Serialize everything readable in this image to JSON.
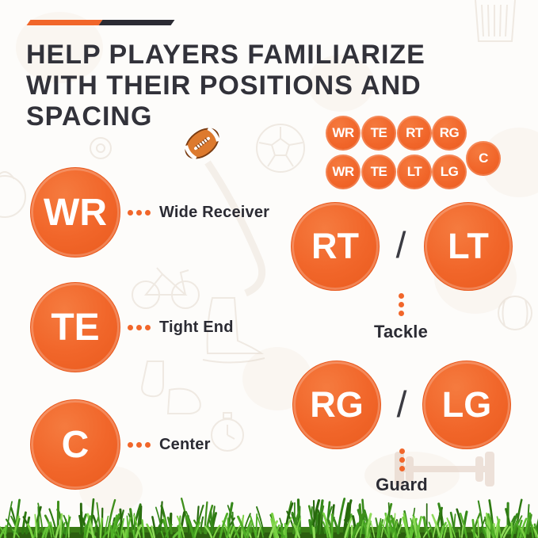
{
  "header": {
    "title_lines": [
      "HELP PLAYERS FAMILIARIZE",
      "WITH THEIR POSITIONS AND",
      "SPACING"
    ]
  },
  "mini_formation": {
    "row1": [
      "WR",
      "TE",
      "RT",
      "RG"
    ],
    "row2": [
      "WR",
      "TE",
      "LT",
      "LG"
    ],
    "side": "C"
  },
  "positions_left": [
    {
      "abbr": "WR",
      "label": "Wide Receiver"
    },
    {
      "abbr": "TE",
      "label": "Tight End"
    },
    {
      "abbr": "C",
      "label": "Center"
    }
  ],
  "positions_right": [
    {
      "first": "RT",
      "separator": "/",
      "second": "LT",
      "label": "Tackle"
    },
    {
      "first": "RG",
      "separator": "/",
      "second": "LG",
      "label": "Guard"
    }
  ],
  "colors": {
    "accent_orange": "#f1662a",
    "accent_dark": "#2b2b33",
    "title_text": "#32323a",
    "label_text": "#2b2b33",
    "grass_green": "#4fae27"
  }
}
